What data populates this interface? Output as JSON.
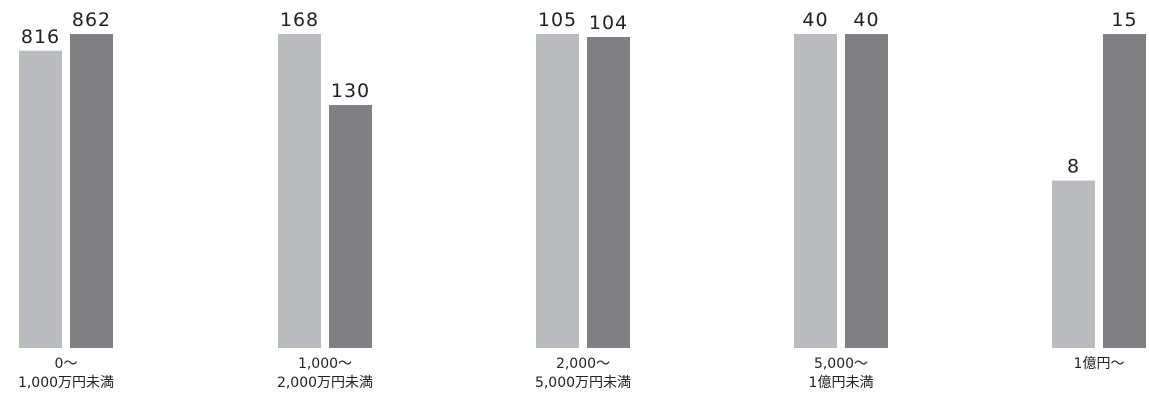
{
  "chart_data": {
    "type": "bar",
    "categories": [
      [
        "0〜",
        "1,000万円未満"
      ],
      [
        "1,000〜",
        "2,000万円未満"
      ],
      [
        "2,000〜",
        "5,000万円未満"
      ],
      [
        "5,000〜",
        "1億円未満"
      ],
      [
        "1億円〜"
      ]
    ],
    "groups": [
      {
        "values": [
          816,
          862
        ]
      },
      {
        "values": [
          168,
          130
        ]
      },
      {
        "values": [
          105,
          104
        ]
      },
      {
        "values": [
          40,
          40
        ]
      },
      {
        "values": [
          8,
          15
        ]
      }
    ],
    "series": [
      {
        "name": "",
        "color": "#babbbf"
      },
      {
        "name": "",
        "color": "#808083"
      }
    ],
    "per_group_independent_scale": true,
    "grid": false,
    "legend": "none",
    "title": "",
    "xlabel": "",
    "ylabel": ""
  }
}
